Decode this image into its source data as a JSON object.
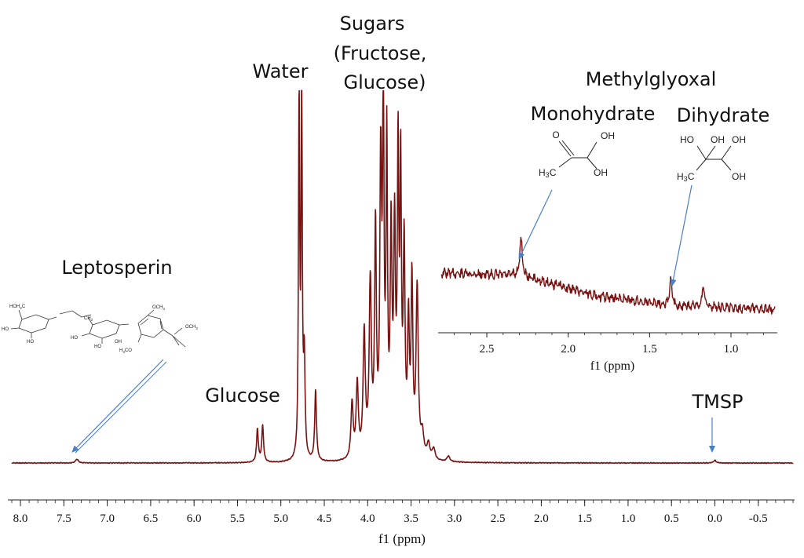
{
  "chart_data": [
    {
      "type": "line",
      "title": "",
      "xlabel": "f1 (ppm)",
      "ylabel": "",
      "x_reversed": true,
      "xlim": [
        8.1,
        -0.9
      ],
      "tick_values": [
        8.0,
        7.5,
        7.0,
        6.5,
        6.0,
        5.5,
        5.0,
        4.5,
        4.0,
        3.5,
        3.0,
        2.5,
        2.0,
        1.5,
        1.0,
        0.5,
        0.0,
        -0.5
      ],
      "tick_labels": [
        "8.0",
        "7.5",
        "7.0",
        "6.5",
        "6.0",
        "5.5",
        "5.0",
        "4.5",
        "4.0",
        "3.5",
        "3.0",
        "2.5",
        "2.0",
        "1.5",
        "1.0",
        "0.5",
        "0.0",
        "-0.5"
      ],
      "series": [
        {
          "color": "#7a1212",
          "peaks": [
            {
              "ppm": 7.35,
              "height": 0.01,
              "width": 0.02
            },
            {
              "ppm": 5.27,
              "height": 0.09,
              "width": 0.012
            },
            {
              "ppm": 5.21,
              "height": 0.098,
              "width": 0.012
            },
            {
              "ppm": 4.79,
              "height": 1.0,
              "width": 0.008
            },
            {
              "ppm": 4.76,
              "height": 1.0,
              "width": 0.008
            },
            {
              "ppm": 4.73,
              "height": 0.26,
              "width": 0.01
            },
            {
              "ppm": 4.6,
              "height": 0.19,
              "width": 0.012
            },
            {
              "ppm": 4.18,
              "height": 0.15,
              "width": 0.015
            },
            {
              "ppm": 4.12,
              "height": 0.2,
              "width": 0.015
            },
            {
              "ppm": 4.04,
              "height": 0.33,
              "width": 0.015
            },
            {
              "ppm": 3.97,
              "height": 0.46,
              "width": 0.015
            },
            {
              "ppm": 3.91,
              "height": 0.6,
              "width": 0.012
            },
            {
              "ppm": 3.85,
              "height": 0.76,
              "width": 0.012
            },
            {
              "ppm": 3.82,
              "height": 0.92,
              "width": 0.01
            },
            {
              "ppm": 3.78,
              "height": 0.82,
              "width": 0.01
            },
            {
              "ppm": 3.73,
              "height": 0.58,
              "width": 0.012
            },
            {
              "ppm": 3.69,
              "height": 0.58,
              "width": 0.012
            },
            {
              "ppm": 3.65,
              "height": 0.78,
              "width": 0.01
            },
            {
              "ppm": 3.62,
              "height": 0.74,
              "width": 0.01
            },
            {
              "ppm": 3.58,
              "height": 0.55,
              "width": 0.012
            },
            {
              "ppm": 3.53,
              "height": 0.34,
              "width": 0.012
            },
            {
              "ppm": 3.49,
              "height": 0.46,
              "width": 0.012
            },
            {
              "ppm": 3.43,
              "height": 0.45,
              "width": 0.015
            },
            {
              "ppm": 3.37,
              "height": 0.06,
              "width": 0.02
            },
            {
              "ppm": 3.3,
              "height": 0.04,
              "width": 0.02
            },
            {
              "ppm": 3.24,
              "height": 0.03,
              "width": 0.02
            },
            {
              "ppm": 3.07,
              "height": 0.015,
              "width": 0.02
            },
            {
              "ppm": 0.0,
              "height": 0.008,
              "width": 0.015
            }
          ]
        }
      ],
      "annotations": [
        {
          "text": "Water",
          "ppm": 4.76
        },
        {
          "text": "Glucose",
          "ppm": 5.24
        },
        {
          "text": "Leptosperin",
          "ppm": 7.35
        },
        {
          "text": "TMSP",
          "ppm": 0.0
        },
        {
          "text": "Sugars",
          "ppm": 3.75
        },
        {
          "text": "(Fructose,",
          "ppm": 3.75
        },
        {
          "text": "Glucose)",
          "ppm": 3.75
        }
      ]
    },
    {
      "type": "line",
      "title": "",
      "xlabel": "f1 (ppm)",
      "ylabel": "",
      "x_reversed": true,
      "xlim": [
        2.78,
        0.73
      ],
      "tick_values": [
        2.5,
        2.0,
        1.5,
        1.0
      ],
      "tick_labels": [
        "2.5",
        "2.0",
        "1.5",
        "1.0"
      ],
      "series": [
        {
          "color": "#7a1212",
          "baseline_drift": [
            [
              2.78,
              0.58
            ],
            [
              2.3,
              0.55
            ],
            [
              1.8,
              0.28
            ],
            [
              1.3,
              0.16
            ],
            [
              0.73,
              0.12
            ]
          ],
          "peaks": [
            {
              "ppm": 2.29,
              "height": 0.55,
              "width": 0.008
            },
            {
              "ppm": 1.37,
              "height": 0.33,
              "width": 0.008
            },
            {
              "ppm": 1.17,
              "height": 0.3,
              "width": 0.008
            }
          ]
        }
      ],
      "annotations": [
        {
          "text": "Methylglyoxal"
        },
        {
          "text": "Monohydrate",
          "ppm": 2.29
        },
        {
          "text": "Dihydrate",
          "ppm": 1.37
        }
      ]
    }
  ],
  "labels": {
    "water": "Water",
    "glucose": "Glucose",
    "sugars_1": "Sugars",
    "sugars_2": "(Fructose,",
    "sugars_3": "Glucose)",
    "leptosperin": "Leptosperin",
    "tmsp": "TMSP",
    "methylglyoxal": "Methylglyoxal",
    "monohydrate": "Monohydrate",
    "dihydrate": "Dihydrate"
  },
  "chemistry": {
    "mono_o": "O",
    "mono_oh_top": "OH",
    "mono_h3c": "H3C",
    "mono_oh_bottom": "OH",
    "di_ho": "HO",
    "di_oh_mid": "OH",
    "di_oh_right": "OH",
    "di_h3c": "H3C",
    "di_oh_bottom": "OH",
    "lep_hoh2c": "HOH2C",
    "lep_ho_1": "HO",
    "lep_oh_1": "HO",
    "lep_ch2": "CH2",
    "lep_ho_2": "HO",
    "lep_ho_3": "HO",
    "lep_oh_2": "OH",
    "lep_och3_top": "OCH3",
    "lep_h3co": "H3CO",
    "lep_och3_ester": "OCH3"
  }
}
